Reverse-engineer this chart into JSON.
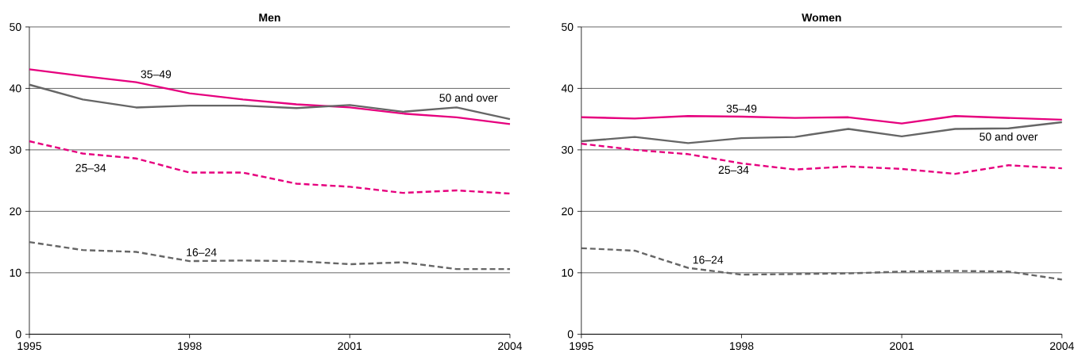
{
  "chart_data": [
    {
      "type": "line",
      "title": "Men",
      "x": [
        1995,
        1996,
        1997,
        1998,
        1999,
        2000,
        2001,
        2002,
        2003,
        2004
      ],
      "xlim": [
        1995,
        2004
      ],
      "xticks": [
        1995,
        1998,
        2001,
        2004
      ],
      "ylim": [
        0,
        50
      ],
      "yticks": [
        0,
        10,
        20,
        30,
        40,
        50
      ],
      "grid": "y",
      "series": [
        {
          "name": "35–49",
          "color": "#e6007e",
          "line_style": "solid",
          "values": [
            43.1,
            42.0,
            41.0,
            39.2,
            38.2,
            37.4,
            36.9,
            35.9,
            35.3,
            34.2
          ]
        },
        {
          "name": "50 and over",
          "color": "#666666",
          "line_style": "solid",
          "values": [
            40.6,
            38.2,
            36.9,
            37.2,
            37.2,
            36.8,
            37.3,
            36.2,
            36.9,
            35.0
          ]
        },
        {
          "name": "25–34",
          "color": "#e6007e",
          "line_style": "dashed",
          "values": [
            31.4,
            29.4,
            28.6,
            26.3,
            26.3,
            24.5,
            24.0,
            23.0,
            23.4,
            22.9
          ]
        },
        {
          "name": "16–24",
          "color": "#666666",
          "line_style": "dashed",
          "values": [
            15.0,
            13.7,
            13.4,
            11.9,
            12.0,
            11.9,
            11.4,
            11.7,
            10.6,
            10.6
          ]
        }
      ]
    },
    {
      "type": "line",
      "title": "Women",
      "x": [
        1995,
        1996,
        1997,
        1998,
        1999,
        2000,
        2001,
        2002,
        2003,
        2004
      ],
      "xlim": [
        1995,
        2004
      ],
      "xticks": [
        1995,
        1998,
        2001,
        2004
      ],
      "ylim": [
        0,
        50
      ],
      "yticks": [
        0,
        10,
        20,
        30,
        40,
        50
      ],
      "grid": "y",
      "series": [
        {
          "name": "35–49",
          "color": "#e6007e",
          "line_style": "solid",
          "values": [
            35.3,
            35.1,
            35.5,
            35.4,
            35.2,
            35.3,
            34.3,
            35.5,
            35.2,
            34.9
          ]
        },
        {
          "name": "50 and over",
          "color": "#666666",
          "line_style": "solid",
          "values": [
            31.4,
            32.1,
            31.1,
            31.9,
            32.1,
            33.4,
            32.2,
            33.4,
            33.5,
            34.5
          ]
        },
        {
          "name": "25–34",
          "color": "#e6007e",
          "line_style": "dashed",
          "values": [
            31.0,
            30.0,
            29.3,
            27.8,
            26.8,
            27.3,
            26.9,
            26.1,
            27.5,
            27.0
          ]
        },
        {
          "name": "16–24",
          "color": "#666666",
          "line_style": "dashed",
          "values": [
            14.0,
            13.6,
            10.8,
            9.7,
            9.8,
            9.9,
            10.2,
            10.3,
            10.2,
            8.9
          ]
        }
      ]
    }
  ]
}
